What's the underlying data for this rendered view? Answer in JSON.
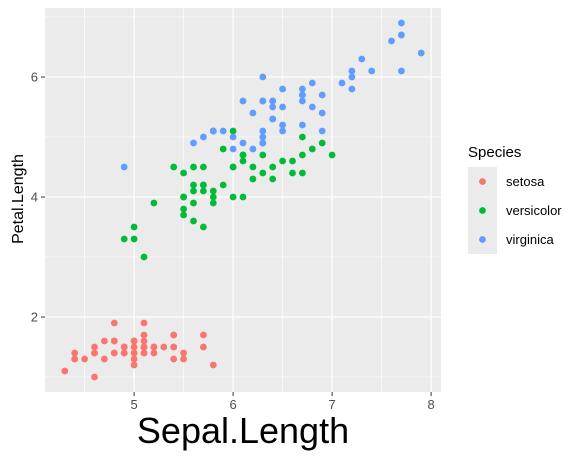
{
  "chart_data": {
    "type": "scatter",
    "xlabel": "Sepal.Length",
    "ylabel": "Petal.Length",
    "xlim": [
      4.1,
      8.1
    ],
    "ylim": [
      0.75,
      7.15
    ],
    "x_ticks": [
      5,
      6,
      7,
      8
    ],
    "y_ticks": [
      2,
      4,
      6
    ],
    "x_tick_labels": [
      "5",
      "6",
      "7",
      "8"
    ],
    "y_tick_labels": [
      "2",
      "4",
      "6"
    ],
    "grid": true,
    "legend": {
      "title": "Species",
      "position": "right"
    },
    "series": [
      {
        "name": "setosa",
        "color": "#F8766D",
        "points": [
          [
            5.1,
            1.4
          ],
          [
            4.9,
            1.4
          ],
          [
            4.7,
            1.3
          ],
          [
            4.6,
            1.5
          ],
          [
            5.0,
            1.4
          ],
          [
            5.4,
            1.7
          ],
          [
            4.6,
            1.4
          ],
          [
            5.0,
            1.5
          ],
          [
            4.4,
            1.4
          ],
          [
            4.9,
            1.5
          ],
          [
            5.4,
            1.5
          ],
          [
            4.8,
            1.6
          ],
          [
            4.8,
            1.4
          ],
          [
            4.3,
            1.1
          ],
          [
            5.8,
            1.2
          ],
          [
            5.7,
            1.5
          ],
          [
            5.4,
            1.3
          ],
          [
            5.1,
            1.4
          ],
          [
            5.7,
            1.7
          ],
          [
            5.1,
            1.5
          ],
          [
            5.4,
            1.7
          ],
          [
            5.1,
            1.5
          ],
          [
            4.6,
            1.0
          ],
          [
            5.1,
            1.7
          ],
          [
            4.8,
            1.9
          ],
          [
            5.0,
            1.6
          ],
          [
            5.0,
            1.6
          ],
          [
            5.2,
            1.5
          ],
          [
            5.2,
            1.4
          ],
          [
            4.7,
            1.6
          ],
          [
            4.8,
            1.6
          ],
          [
            5.4,
            1.5
          ],
          [
            5.2,
            1.5
          ],
          [
            5.5,
            1.4
          ],
          [
            4.9,
            1.5
          ],
          [
            5.0,
            1.2
          ],
          [
            5.5,
            1.3
          ],
          [
            4.9,
            1.4
          ],
          [
            4.4,
            1.3
          ],
          [
            5.1,
            1.5
          ],
          [
            5.0,
            1.3
          ],
          [
            4.5,
            1.3
          ],
          [
            4.4,
            1.3
          ],
          [
            5.0,
            1.6
          ],
          [
            5.1,
            1.9
          ],
          [
            4.8,
            1.4
          ],
          [
            5.1,
            1.6
          ],
          [
            4.6,
            1.4
          ],
          [
            5.3,
            1.5
          ],
          [
            5.0,
            1.4
          ]
        ]
      },
      {
        "name": "versicolor",
        "color": "#00BA38",
        "points": [
          [
            7.0,
            4.7
          ],
          [
            6.4,
            4.5
          ],
          [
            6.9,
            4.9
          ],
          [
            5.5,
            4.0
          ],
          [
            6.5,
            4.6
          ],
          [
            5.7,
            4.5
          ],
          [
            6.3,
            4.7
          ],
          [
            4.9,
            3.3
          ],
          [
            6.6,
            4.6
          ],
          [
            5.2,
            3.9
          ],
          [
            5.0,
            3.5
          ],
          [
            5.9,
            4.2
          ],
          [
            6.0,
            4.0
          ],
          [
            6.1,
            4.7
          ],
          [
            5.6,
            3.6
          ],
          [
            6.7,
            4.4
          ],
          [
            5.6,
            4.5
          ],
          [
            5.8,
            4.1
          ],
          [
            6.2,
            4.5
          ],
          [
            5.6,
            3.9
          ],
          [
            5.9,
            4.8
          ],
          [
            6.1,
            4.0
          ],
          [
            6.3,
            4.9
          ],
          [
            6.1,
            4.7
          ],
          [
            6.4,
            4.3
          ],
          [
            6.6,
            4.4
          ],
          [
            6.8,
            4.8
          ],
          [
            6.7,
            5.0
          ],
          [
            6.0,
            4.5
          ],
          [
            5.7,
            3.5
          ],
          [
            5.5,
            3.8
          ],
          [
            5.5,
            3.7
          ],
          [
            5.8,
            3.9
          ],
          [
            6.0,
            5.1
          ],
          [
            5.4,
            4.5
          ],
          [
            6.0,
            4.5
          ],
          [
            6.7,
            4.7
          ],
          [
            6.3,
            4.4
          ],
          [
            5.6,
            4.1
          ],
          [
            5.5,
            4.0
          ],
          [
            5.5,
            4.4
          ],
          [
            6.1,
            4.6
          ],
          [
            5.8,
            4.0
          ],
          [
            5.0,
            3.3
          ],
          [
            5.6,
            4.2
          ],
          [
            5.7,
            4.2
          ],
          [
            5.7,
            4.2
          ],
          [
            6.2,
            4.3
          ],
          [
            5.1,
            3.0
          ],
          [
            5.7,
            4.1
          ]
        ]
      },
      {
        "name": "virginica",
        "color": "#619CFF",
        "points": [
          [
            6.3,
            6.0
          ],
          [
            5.8,
            5.1
          ],
          [
            7.1,
            5.9
          ],
          [
            6.3,
            5.6
          ],
          [
            6.5,
            5.8
          ],
          [
            7.6,
            6.6
          ],
          [
            4.9,
            4.5
          ],
          [
            7.3,
            6.3
          ],
          [
            6.7,
            5.8
          ],
          [
            7.2,
            6.1
          ],
          [
            6.5,
            5.1
          ],
          [
            6.4,
            5.3
          ],
          [
            6.8,
            5.5
          ],
          [
            5.7,
            5.0
          ],
          [
            5.8,
            5.1
          ],
          [
            6.4,
            5.3
          ],
          [
            6.5,
            5.5
          ],
          [
            7.7,
            6.7
          ],
          [
            7.7,
            6.9
          ],
          [
            6.0,
            5.0
          ],
          [
            6.9,
            5.7
          ],
          [
            5.6,
            4.9
          ],
          [
            7.7,
            6.7
          ],
          [
            6.3,
            4.9
          ],
          [
            6.7,
            5.7
          ],
          [
            7.2,
            6.0
          ],
          [
            6.2,
            4.8
          ],
          [
            6.1,
            4.9
          ],
          [
            6.4,
            5.6
          ],
          [
            7.2,
            5.8
          ],
          [
            7.4,
            6.1
          ],
          [
            7.9,
            6.4
          ],
          [
            6.4,
            5.6
          ],
          [
            6.3,
            5.1
          ],
          [
            6.1,
            5.6
          ],
          [
            7.7,
            6.1
          ],
          [
            6.3,
            5.6
          ],
          [
            6.4,
            5.5
          ],
          [
            6.0,
            4.8
          ],
          [
            6.9,
            5.4
          ],
          [
            6.7,
            5.6
          ],
          [
            6.9,
            5.1
          ],
          [
            5.8,
            5.1
          ],
          [
            6.8,
            5.9
          ],
          [
            6.7,
            5.7
          ],
          [
            6.7,
            5.2
          ],
          [
            6.3,
            5.0
          ],
          [
            6.5,
            5.2
          ],
          [
            6.2,
            5.4
          ],
          [
            5.9,
            5.1
          ]
        ]
      }
    ]
  }
}
